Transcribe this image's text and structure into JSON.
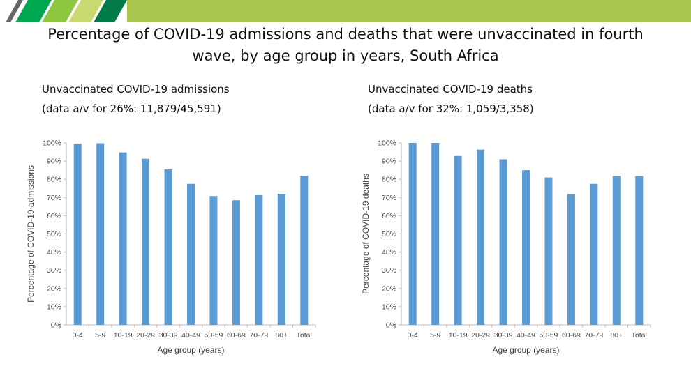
{
  "slide": {
    "title": "Percentage of COVID-19 admissions and deaths that were unvaccinated in fourth wave, by age group in years, South Africa",
    "colors": {
      "bar": "#5b9bd5",
      "banner": "#a8c64e",
      "banner_stripe_dark": "#007a47"
    }
  },
  "chart_data": [
    {
      "type": "bar",
      "title": "Unvaccinated COVID-19 admissions",
      "subtitle": "(data a/v for 26%: 11,879/45,591)",
      "xlabel": "Age group (years)",
      "ylabel": "Percentage of COVID-19 admissions",
      "categories": [
        "0-4",
        "5-9",
        "10-19",
        "20-29",
        "30-39",
        "40-49",
        "50-59",
        "60-69",
        "70-79",
        "80+",
        "Total"
      ],
      "values": [
        99.5,
        99.8,
        94.8,
        91.3,
        85.5,
        77.5,
        70.8,
        68.5,
        71.3,
        72.0,
        82.0
      ],
      "ylim": [
        0,
        100
      ],
      "yticks": [
        "0%",
        "10%",
        "20%",
        "30%",
        "40%",
        "50%",
        "60%",
        "70%",
        "80%",
        "90%",
        "100%"
      ],
      "grid": false,
      "legend": "none"
    },
    {
      "type": "bar",
      "title": "Unvaccinated COVID-19 deaths",
      "subtitle": "(data a/v for 32%: 1,059/3,358)",
      "xlabel": "Age group (years)",
      "ylabel": "Percentage of COVID-19 deaths",
      "categories": [
        "0-4",
        "5-9",
        "10-19",
        "20-29",
        "30-39",
        "40-49",
        "50-59",
        "60-69",
        "70-79",
        "80+",
        "Total"
      ],
      "values": [
        100,
        100,
        92.8,
        96.3,
        91.0,
        85.0,
        81.0,
        71.8,
        77.5,
        81.8,
        81.8
      ],
      "ylim": [
        0,
        100
      ],
      "yticks": [
        "0%",
        "10%",
        "20%",
        "30%",
        "40%",
        "50%",
        "60%",
        "70%",
        "80%",
        "90%",
        "100%"
      ],
      "grid": false,
      "legend": "none"
    }
  ]
}
